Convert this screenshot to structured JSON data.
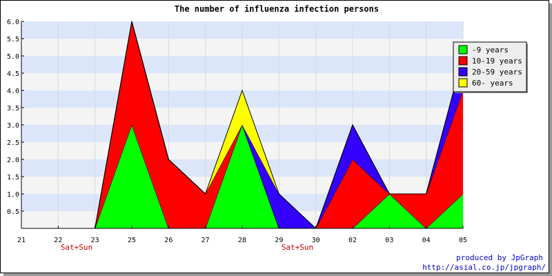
{
  "chart_data": {
    "type": "area",
    "stacked": true,
    "title": "The number of influenza infection persons",
    "categories": [
      "21",
      "22",
      "23",
      "25",
      "26",
      "27",
      "28",
      "29",
      "30",
      "02",
      "03",
      "04",
      "05"
    ],
    "series": [
      {
        "name": "-9 years",
        "color": "#00ff00",
        "values": [
          0,
          0,
          0,
          3,
          0,
          0,
          3,
          0,
          0,
          0,
          1,
          0,
          1
        ]
      },
      {
        "name": "10-19 years",
        "color": "#ff0000",
        "values": [
          0,
          0,
          0,
          3,
          2,
          1,
          0,
          0,
          0,
          2,
          0,
          1,
          3
        ]
      },
      {
        "name": "20-59 years",
        "color": "#3300ff",
        "values": [
          0,
          0,
          0,
          0,
          0,
          0,
          0,
          1,
          0,
          1,
          0,
          0,
          1
        ]
      },
      {
        "name": "60- years",
        "color": "#ffff00",
        "values": [
          0,
          0,
          0,
          0,
          0,
          0,
          1,
          0,
          0,
          0,
          0,
          0,
          0
        ]
      }
    ],
    "ylim": [
      0,
      6
    ],
    "yticks": [
      "6.0",
      "5.5",
      "5.0",
      "4.5",
      "4.0",
      "3.5",
      "3.0",
      "2.5",
      "2.0",
      "1.5",
      "1.0",
      "0.5"
    ],
    "grid": true,
    "band_colors": [
      "#dbe6fb",
      "#f4f4f4"
    ],
    "legend_position": "top-right",
    "annotations": [
      {
        "text": "Sat+Sun",
        "category_index": 1
      },
      {
        "text": "Sat+Sun",
        "category_index": 7
      }
    ]
  },
  "footer": {
    "line1": "produced by JpGraph",
    "line2": "http://asial.co.jp/jpgraph/"
  }
}
